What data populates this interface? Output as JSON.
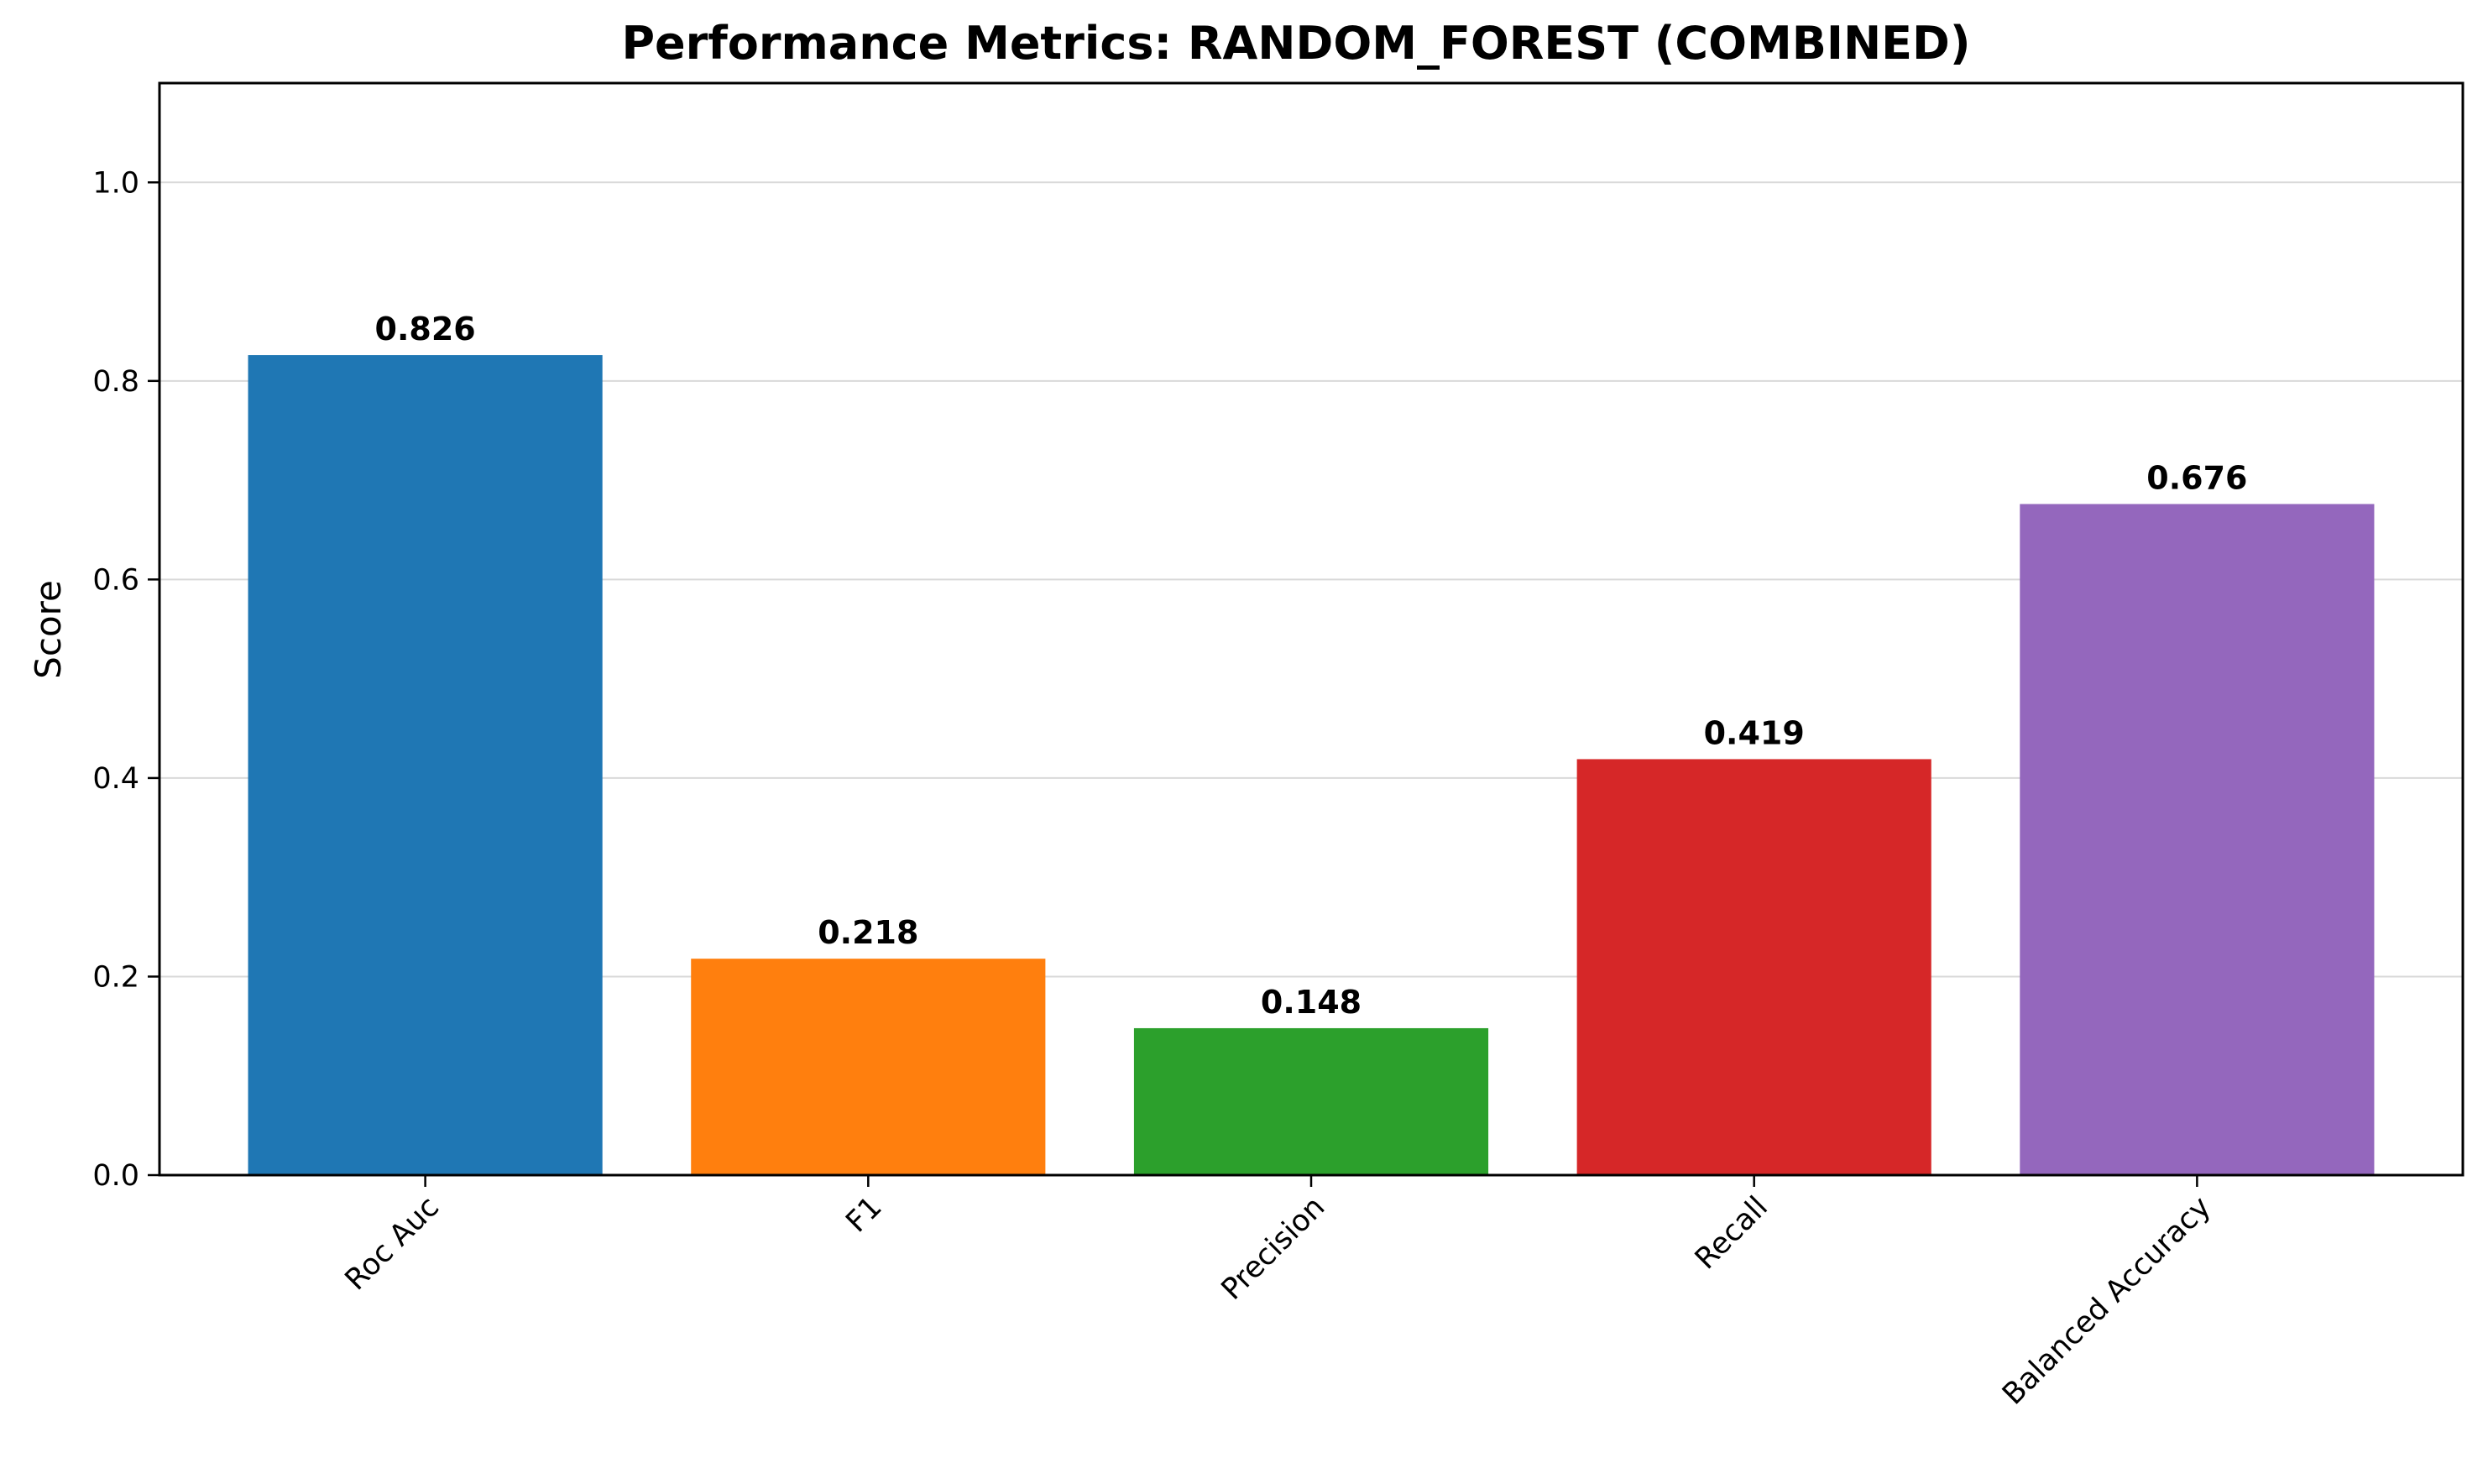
{
  "chart_data": {
    "type": "bar",
    "title": "Performance Metrics: RANDOM_FOREST (COMBINED)",
    "xlabel": "",
    "ylabel": "Score",
    "categories": [
      "Roc Auc",
      "F1",
      "Precision",
      "Recall",
      "Balanced Accuracy"
    ],
    "values": [
      0.826,
      0.218,
      0.148,
      0.419,
      0.676
    ],
    "data_labels": [
      "0.826",
      "0.218",
      "0.148",
      "0.419",
      "0.676"
    ],
    "colors": [
      "#1f77b4",
      "#ff7f0e",
      "#2ca02c",
      "#d62728",
      "#9467bd"
    ],
    "ylim": [
      0,
      1.1
    ],
    "yticks": [
      0.0,
      0.2,
      0.4,
      0.6,
      0.8,
      1.0
    ],
    "ytick_labels": [
      "0.0",
      "0.2",
      "0.4",
      "0.6",
      "0.8",
      "1.0"
    ],
    "grid": "y-axis",
    "x_tick_rotation": 45,
    "legend": "none"
  }
}
